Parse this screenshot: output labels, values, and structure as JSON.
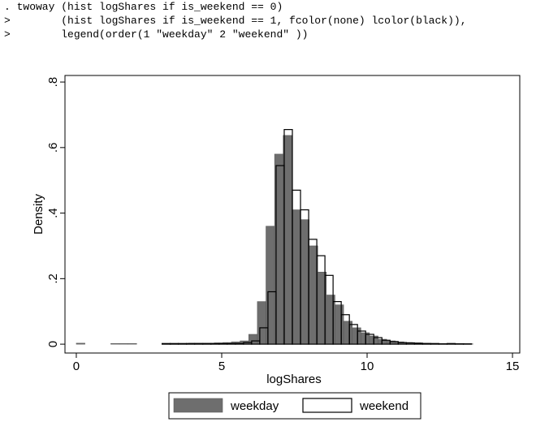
{
  "console": {
    "lines": [
      ". twoway (hist logShares if is_weekend == 0)",
      ">        (hist logShares if is_weekend == 1, fcolor(none) lcolor(black)),",
      ">        legend(order(1 \"weekday\" 2 \"weekend\" ))"
    ]
  },
  "chart_data": {
    "type": "histogram",
    "x_label": "logShares",
    "y_label": "Density",
    "xlim": [
      -0.39,
      15.25
    ],
    "ylim": [
      -0.027,
      0.82
    ],
    "xticks": [
      0,
      5,
      10,
      15
    ],
    "yticks": [
      {
        "value": 0,
        "label": "0"
      },
      {
        "value": 0.2,
        "label": ".2"
      },
      {
        "value": 0.4,
        "label": ".4"
      },
      {
        "value": 0.6,
        "label": ".6"
      },
      {
        "value": 0.8,
        "label": ".8"
      }
    ],
    "grid": false,
    "legend_position": "bottom",
    "series": [
      {
        "name": "weekday",
        "color": "#6e6e6e",
        "edgecolor": "#5a5a5a",
        "bins": [
          0,
          0.2965,
          0.593,
          0.8895,
          1.186,
          1.4825,
          1.779,
          2.0755,
          2.372,
          2.6685,
          2.965,
          3.2615,
          3.558,
          3.8545,
          4.151,
          4.4475,
          4.744,
          5.0405,
          5.337,
          5.6335,
          5.93,
          6.2265,
          6.523,
          6.8195,
          7.116,
          7.4125,
          7.709,
          8.0055,
          8.302,
          8.5985,
          8.895,
          9.1915,
          9.488,
          9.7845,
          10.081,
          10.3775,
          10.674,
          10.9705,
          11.267,
          11.5635,
          11.86,
          12.1565,
          12.453,
          12.7495,
          13.046,
          13.3425,
          13.639
        ],
        "values": [
          0.003,
          0,
          0,
          0,
          0.002,
          0.002,
          0.002,
          0,
          0,
          0,
          0.001,
          0.001,
          0.002,
          0.003,
          0.003,
          0.003,
          0.004,
          0.005,
          0.007,
          0.01,
          0.03,
          0.13,
          0.36,
          0.58,
          0.637,
          0.41,
          0.38,
          0.3,
          0.22,
          0.15,
          0.12,
          0.07,
          0.05,
          0.035,
          0.025,
          0.015,
          0.01,
          0.007,
          0.005,
          0.004,
          0.003,
          0.002,
          0.002,
          0.002,
          0.002,
          0.001
        ]
      },
      {
        "name": "weekend",
        "color": "none",
        "edgecolor": "#000000",
        "bins": [
          2.95,
          3.23,
          3.51,
          3.79,
          4.07,
          4.35,
          4.63,
          4.91,
          5.19,
          5.47,
          5.75,
          6.03,
          6.31,
          6.59,
          6.87,
          7.15,
          7.43,
          7.71,
          7.99,
          8.27,
          8.55,
          8.83,
          9.11,
          9.39,
          9.67,
          9.95,
          10.23,
          10.51,
          10.79,
          11.07,
          11.35,
          11.63,
          11.91,
          12.19,
          12.47,
          12.75,
          13.03,
          13.31,
          13.59
        ],
        "values": [
          0.002,
          0.002,
          0.002,
          0.002,
          0.002,
          0.002,
          0.002,
          0.002,
          0.002,
          0.002,
          0.005,
          0.01,
          0.05,
          0.16,
          0.545,
          0.655,
          0.47,
          0.41,
          0.32,
          0.27,
          0.21,
          0.13,
          0.09,
          0.06,
          0.04,
          0.03,
          0.02,
          0.012,
          0.008,
          0.005,
          0.004,
          0.003,
          0.002,
          0.002,
          0.001,
          0.002,
          0.001,
          0.001
        ]
      }
    ]
  }
}
